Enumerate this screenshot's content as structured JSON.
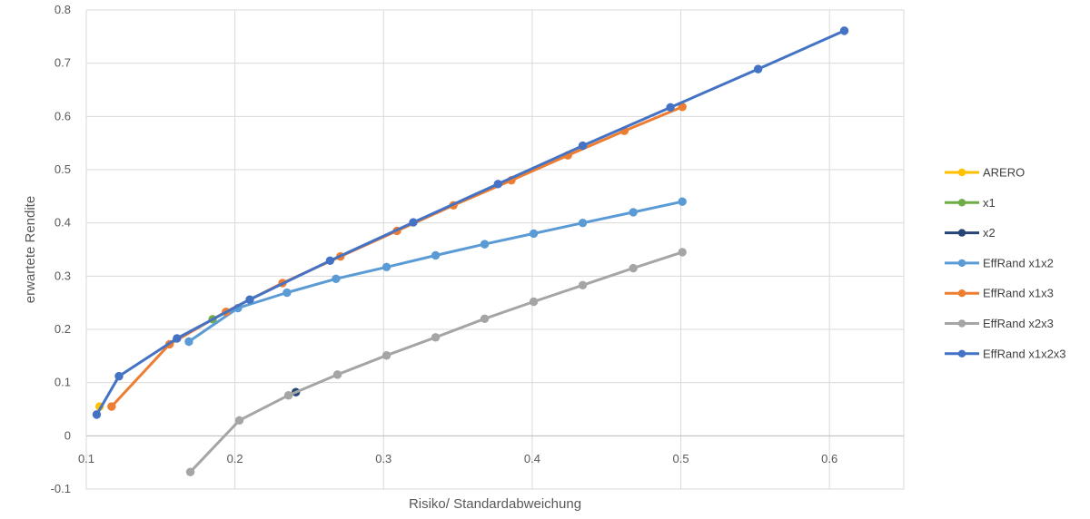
{
  "chart_data": {
    "type": "line",
    "title": "",
    "xlabel": "Risiko/ Standardabweichung",
    "ylabel": "erwartete Rendite",
    "xlim": [
      0.1,
      0.65
    ],
    "ylim": [
      -0.1,
      0.8
    ],
    "xticks": [
      "0.1",
      "0.2",
      "0.3",
      "0.4",
      "0.5",
      "0.6"
    ],
    "yticks": [
      "-0.1",
      "0",
      "0.1",
      "0.2",
      "0.3",
      "0.4",
      "0.5",
      "0.6",
      "0.7",
      "0.8"
    ],
    "grid": true,
    "legend_position": "right",
    "series": [
      {
        "name": "ARERO",
        "color": "#FFC000",
        "points": [
          [
            0.109,
            0.055
          ]
        ]
      },
      {
        "name": "x1",
        "color": "#70AD47",
        "points": [
          [
            0.185,
            0.219
          ]
        ]
      },
      {
        "name": "x2",
        "color": "#264478",
        "points": [
          [
            0.241,
            0.082
          ]
        ]
      },
      {
        "name": "EffRand x1x2",
        "color": "#5B9BD5",
        "points": [
          [
            0.169,
            0.177
          ],
          [
            0.202,
            0.24
          ],
          [
            0.235,
            0.269
          ],
          [
            0.268,
            0.295
          ],
          [
            0.302,
            0.317
          ],
          [
            0.335,
            0.339
          ],
          [
            0.368,
            0.36
          ],
          [
            0.401,
            0.38
          ],
          [
            0.434,
            0.4
          ],
          [
            0.468,
            0.42
          ],
          [
            0.501,
            0.44
          ]
        ]
      },
      {
        "name": "EffRand x1x3",
        "color": "#ED7D31",
        "points": [
          [
            0.117,
            0.055
          ],
          [
            0.156,
            0.172
          ],
          [
            0.194,
            0.233
          ],
          [
            0.232,
            0.287
          ],
          [
            0.271,
            0.337
          ],
          [
            0.309,
            0.385
          ],
          [
            0.347,
            0.433
          ],
          [
            0.386,
            0.48
          ],
          [
            0.424,
            0.527
          ],
          [
            0.462,
            0.573
          ],
          [
            0.501,
            0.618
          ]
        ]
      },
      {
        "name": "EffRand x2x3",
        "color": "#A5A5A5",
        "points": [
          [
            0.17,
            -0.068
          ],
          [
            0.203,
            0.029
          ],
          [
            0.236,
            0.076
          ],
          [
            0.269,
            0.115
          ],
          [
            0.302,
            0.151
          ],
          [
            0.335,
            0.185
          ],
          [
            0.368,
            0.22
          ],
          [
            0.401,
            0.252
          ],
          [
            0.434,
            0.283
          ],
          [
            0.468,
            0.315
          ],
          [
            0.501,
            0.345
          ]
        ]
      },
      {
        "name": "EffRand x1x2x3",
        "color": "#4472C4",
        "points": [
          [
            0.107,
            0.04
          ],
          [
            0.122,
            0.112
          ],
          [
            0.161,
            0.183
          ],
          [
            0.21,
            0.256
          ],
          [
            0.264,
            0.329
          ],
          [
            0.32,
            0.401
          ],
          [
            0.377,
            0.473
          ],
          [
            0.434,
            0.545
          ],
          [
            0.493,
            0.617
          ],
          [
            0.552,
            0.689
          ],
          [
            0.61,
            0.761
          ]
        ]
      }
    ]
  }
}
